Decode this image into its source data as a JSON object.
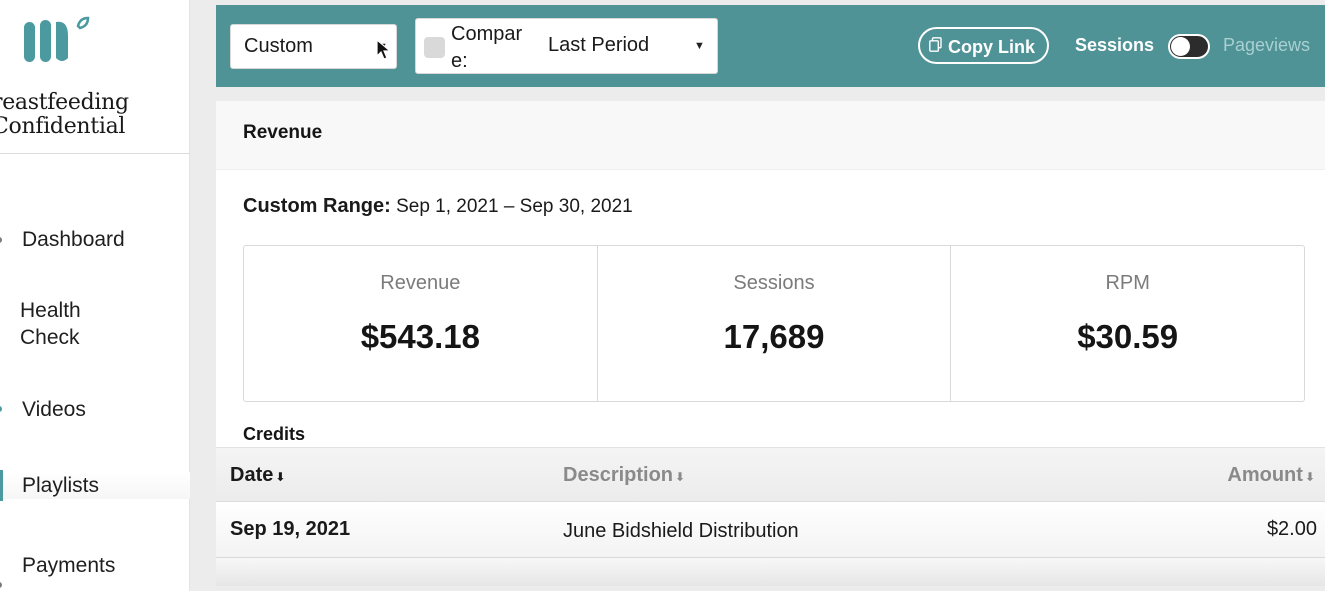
{
  "brand": {
    "name_line1": "reastfeeding",
    "name_line2": "Confidential",
    "logo_color": "#4a9aa0"
  },
  "sidebar": {
    "items": [
      {
        "label": "Dashboard"
      },
      {
        "label": "Health Check"
      },
      {
        "label": "Videos"
      },
      {
        "label": "Playlists"
      },
      {
        "label": "Payments"
      }
    ]
  },
  "toolbar": {
    "range_value": "Custom",
    "compare_label": "Compare:",
    "compare_checked": false,
    "period_value": "Last Period",
    "copy_link_label": "Copy Link",
    "toggle_on_label": "Sessions",
    "toggle_off_label": "Pageviews",
    "background_color": "#4f9397"
  },
  "panel": {
    "title": "Revenue",
    "range_label": "Custom Range:",
    "range_value": "Sep 1, 2021 – Sep 30, 2021",
    "stats": [
      {
        "label": "Revenue",
        "value": "$543.18"
      },
      {
        "label": "Sessions",
        "value": "17,689"
      },
      {
        "label": "RPM",
        "value": "$30.59"
      }
    ],
    "credits": {
      "title": "Credits",
      "columns": [
        "Date",
        "Description",
        "Amount"
      ],
      "rows": [
        {
          "date": "Sep 19, 2021",
          "description": "June Bidshield Distribution",
          "amount": "$2.00"
        }
      ]
    }
  }
}
